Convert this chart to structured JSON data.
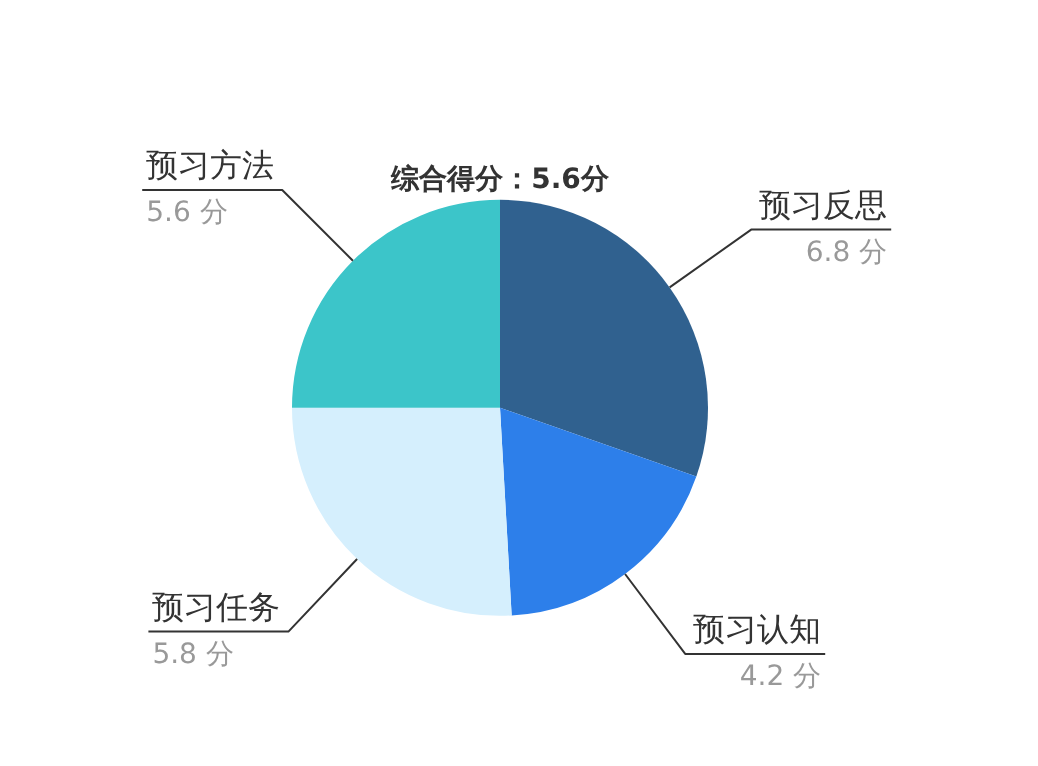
{
  "chart_data": {
    "type": "pie",
    "title": "综合得分：5.6分",
    "categories": [
      "预习反思",
      "预习认知",
      "预习任务",
      "预习方法"
    ],
    "values": [
      6.8,
      4.2,
      5.8,
      5.6
    ],
    "colors": [
      "#30618f",
      "#2d7fea",
      "#d5effd",
      "#3cc5c9"
    ],
    "value_labels": [
      "6.8 分",
      "4.2 分",
      "5.8 分",
      "5.6 分"
    ]
  }
}
